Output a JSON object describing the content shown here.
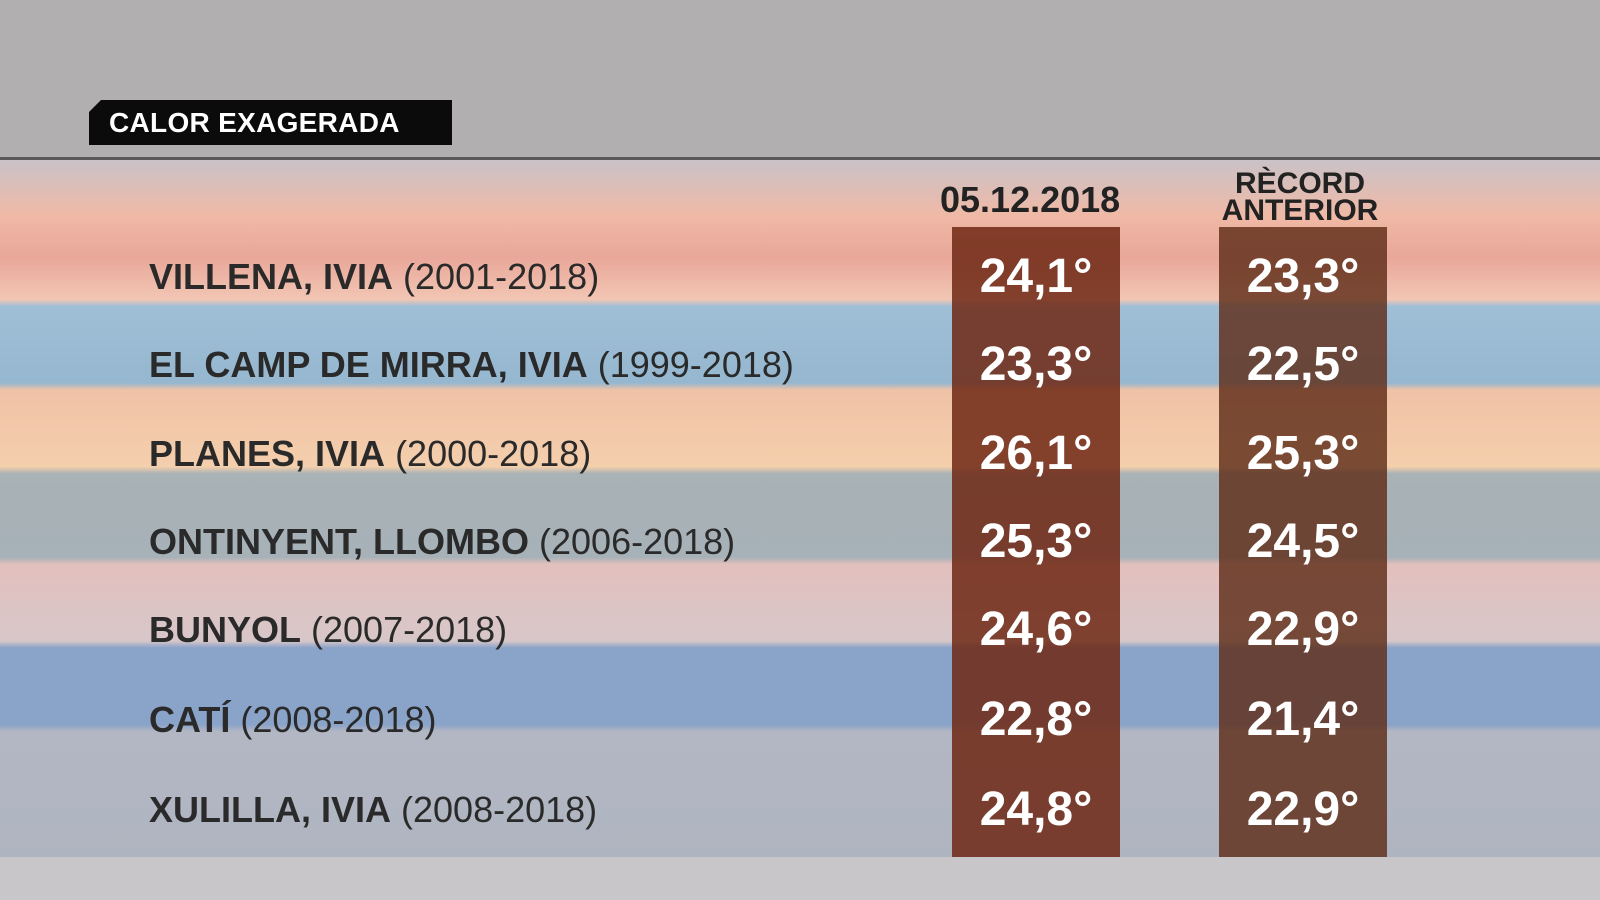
{
  "title": "CALOR EXAGERADA",
  "columns": {
    "date_header": "05.12.2018",
    "prev_header_line1": "RÈCORD",
    "prev_header_line2": "ANTERIOR"
  },
  "rows": [
    {
      "station": "VILLENA, IVIA",
      "years": "(2001-2018)",
      "date_value": "24,1°",
      "prev_value": "23,3°"
    },
    {
      "station": "EL CAMP DE MIRRA, IVIA",
      "years": "(1999-2018)",
      "date_value": "23,3°",
      "prev_value": "22,5°"
    },
    {
      "station": "PLANES, IVIA",
      "years": "(2000-2018)",
      "date_value": "26,1°",
      "prev_value": "25,3°"
    },
    {
      "station": "ONTINYENT, LLOMBO",
      "years": "(2006-2018)",
      "date_value": "25,3°",
      "prev_value": "24,5°"
    },
    {
      "station": "BUNYOL",
      "years": "(2007-2018)",
      "date_value": "24,6°",
      "prev_value": "22,9°"
    },
    {
      "station": "CATÍ",
      "years": "(2008-2018)",
      "date_value": "22,8°",
      "prev_value": "21,4°"
    },
    {
      "station": "XULILLA, IVIA",
      "years": "(2008-2018)",
      "date_value": "24,8°",
      "prev_value": "22,9°"
    }
  ]
}
